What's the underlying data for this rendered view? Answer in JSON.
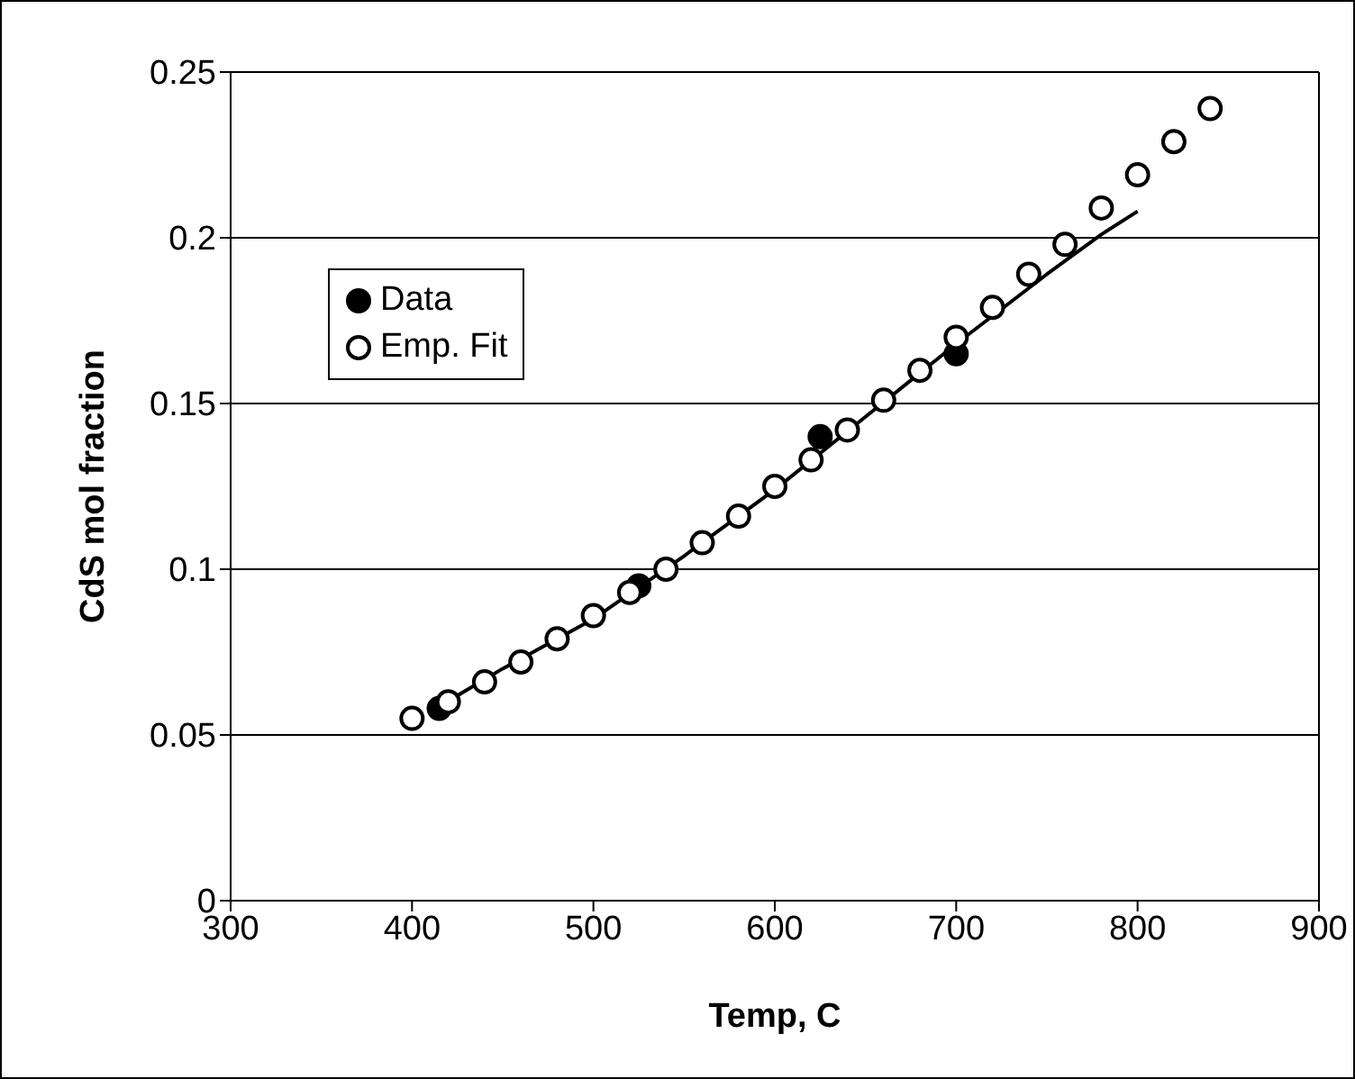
{
  "chart_data": {
    "type": "scatter",
    "xlabel": "Temp, C",
    "ylabel": "CdS mol fraction",
    "xlim": [
      300,
      900
    ],
    "xticks": [
      300,
      400,
      500,
      600,
      700,
      800,
      900
    ],
    "ylim": [
      0,
      0.25
    ],
    "yticks": [
      0,
      0.05,
      0.1,
      0.15,
      0.2,
      0.25
    ],
    "grid": "y",
    "legend": "top left",
    "series": [
      {
        "name": "Data",
        "marker": "circle",
        "color": "#000000",
        "x": [
          415,
          525,
          625,
          700
        ],
        "values": [
          0.058,
          0.095,
          0.14,
          0.165
        ]
      },
      {
        "name": "Emp. Fit",
        "marker": "circle",
        "color": "#ffffff",
        "x": [
          400,
          420,
          440,
          460,
          480,
          500,
          520,
          540,
          560,
          580,
          600,
          620,
          640,
          660,
          680,
          700,
          720,
          740,
          760,
          780,
          800,
          820,
          840
        ],
        "values": [
          0.055,
          0.06,
          0.066,
          0.072,
          0.079,
          0.086,
          0.093,
          0.1,
          0.108,
          0.116,
          0.125,
          0.133,
          0.142,
          0.151,
          0.16,
          0.17,
          0.179,
          0.189,
          0.198,
          0.209,
          0.219,
          0.229,
          0.239
        ]
      },
      {
        "type": "line",
        "marker": "none",
        "color": "#000000",
        "x": [
          410,
          450,
          500,
          550,
          600,
          650,
          700,
          750,
          780,
          800
        ],
        "values": [
          0.057,
          0.07,
          0.085,
          0.104,
          0.124,
          0.146,
          0.168,
          0.189,
          0.201,
          0.208
        ]
      }
    ]
  }
}
